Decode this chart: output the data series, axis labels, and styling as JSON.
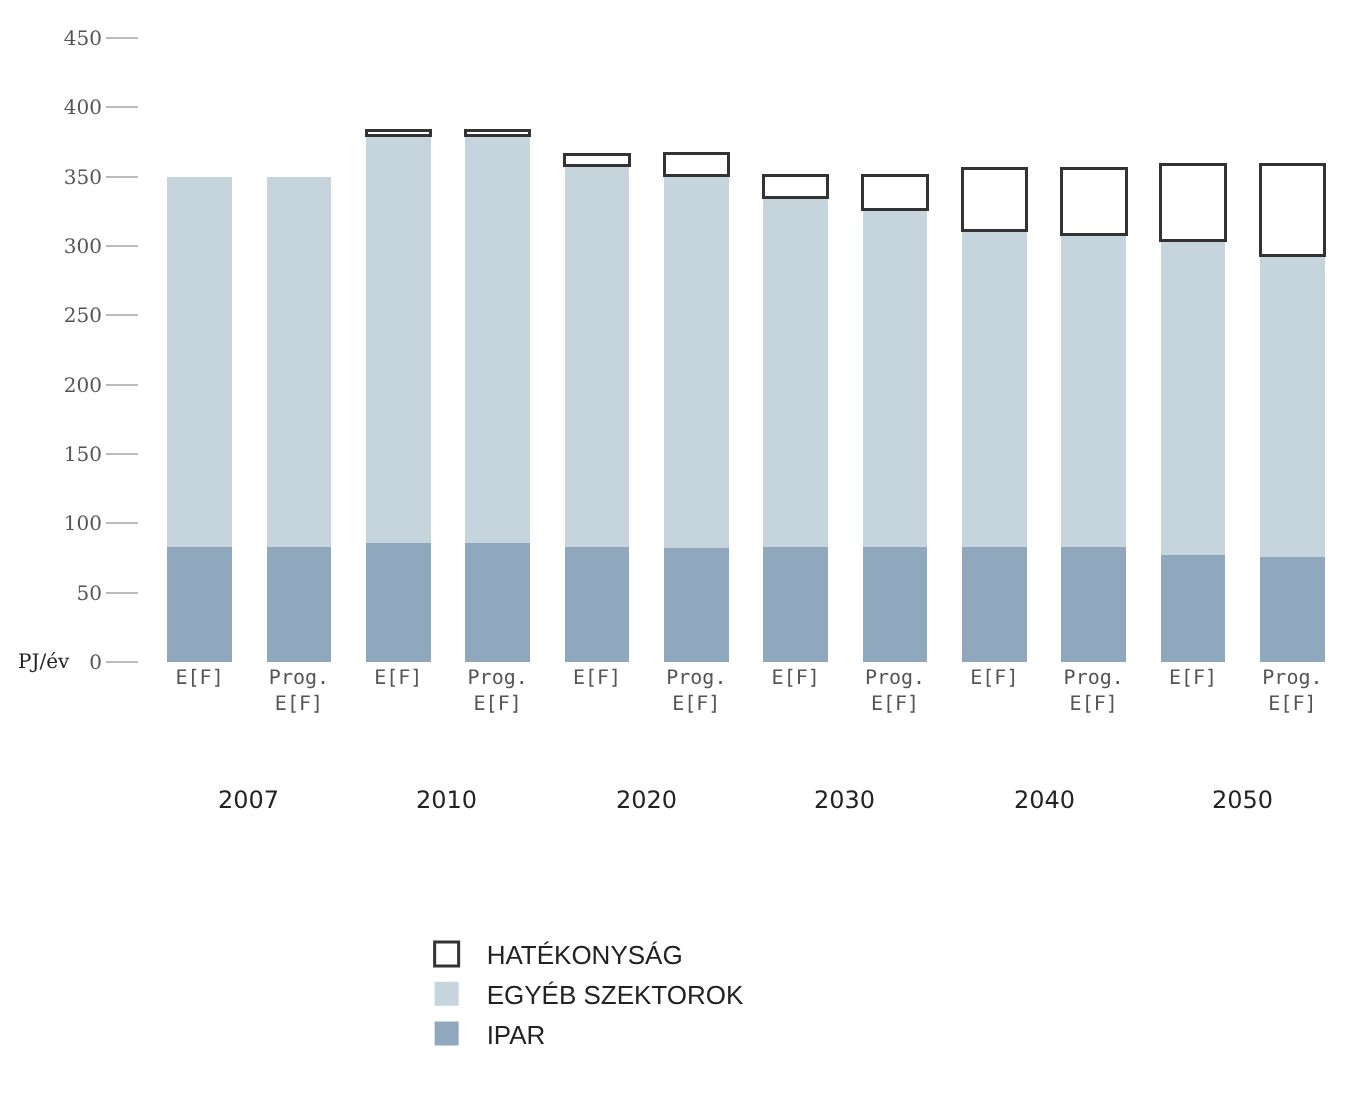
{
  "chart_data": {
    "type": "bar",
    "stacked": true,
    "ylabel": "PJ/év",
    "categories": [
      "E[F]",
      "Prog. E[F]",
      "E[F]",
      "Prog. E[F]",
      "E[F]",
      "Prog. E[F]",
      "E[F]",
      "Prog. E[F]",
      "E[F]",
      "Prog. E[F]",
      "E[F]",
      "Prog. E[F]"
    ],
    "series": [
      {
        "name": "IPAR",
        "color": "#8fa8bd",
        "values": [
          83,
          83,
          86,
          86,
          83,
          82,
          83,
          83,
          83,
          83,
          77,
          76
        ]
      },
      {
        "name": "EGYÉB SZEKTOROK",
        "color": "#c6d4dd",
        "values": [
          267,
          267,
          294,
          294,
          275,
          269,
          252,
          243,
          228,
          225,
          227,
          217
        ]
      },
      {
        "name": "HATÉKONYSÁG",
        "color": "#ffffff",
        "values": [
          null,
          null,
          3,
          3,
          8,
          16,
          16,
          25,
          45,
          48,
          55,
          66
        ]
      }
    ],
    "annotations": [
      "2007",
      "2010",
      "2020",
      "2030",
      "2040",
      "2050"
    ],
    "ylim": [
      0,
      450
    ],
    "yticks": [
      0,
      50,
      100,
      150,
      200,
      250,
      300,
      350,
      400,
      450
    ],
    "grid": false,
    "legend": "bottom"
  }
}
